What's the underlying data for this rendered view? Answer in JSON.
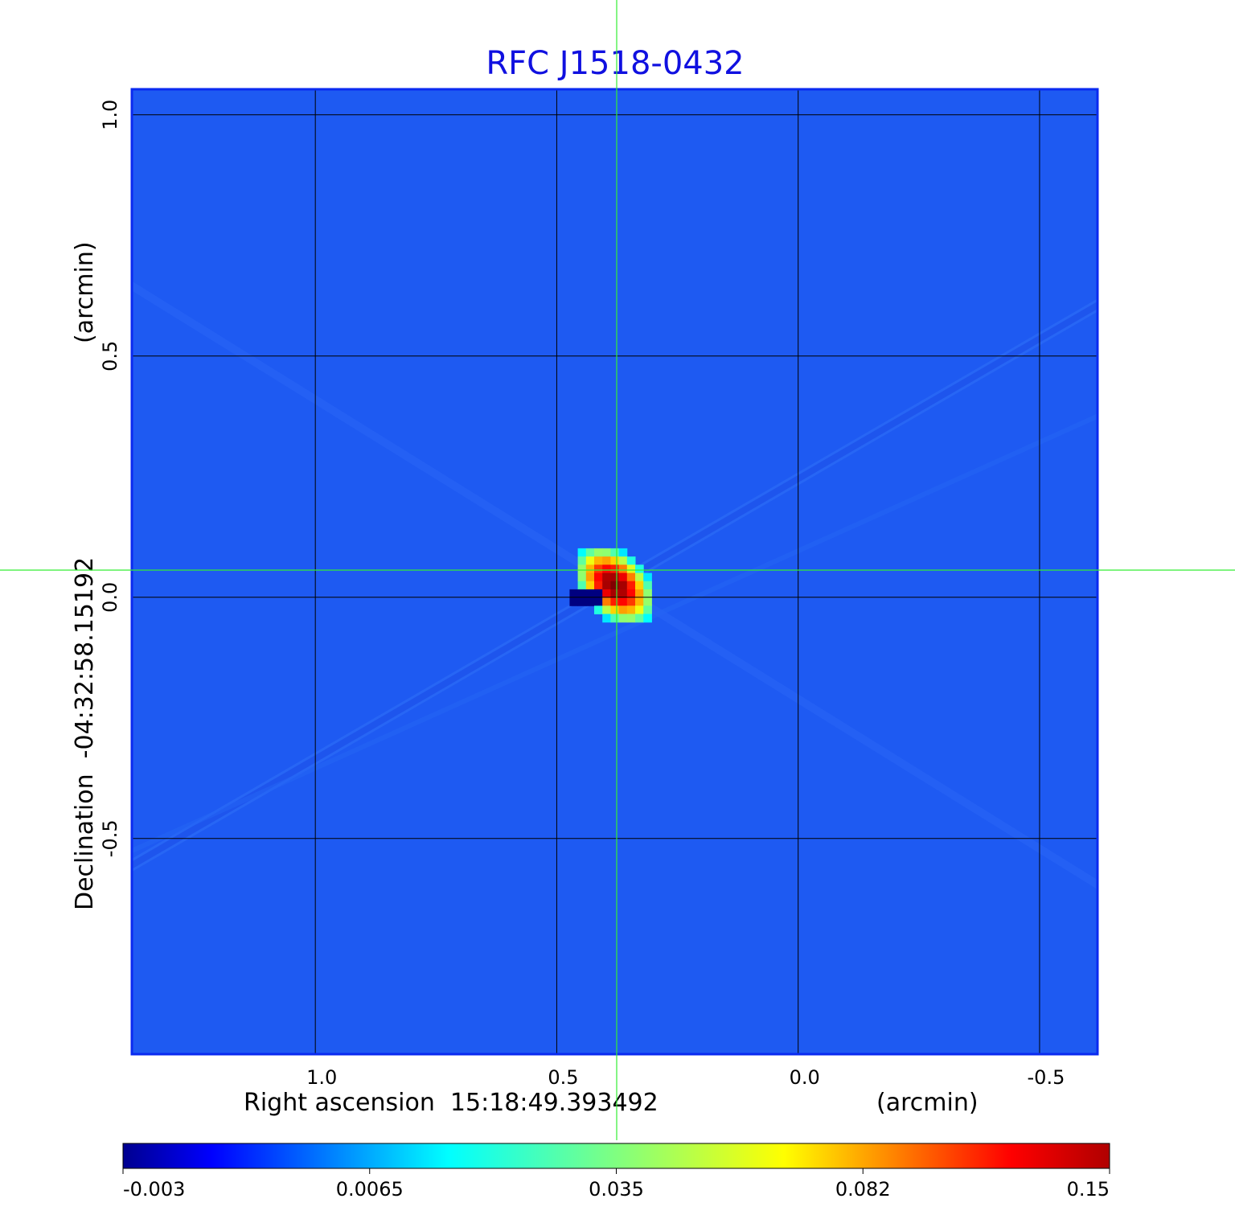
{
  "chart_data": {
    "type": "heatmap",
    "title": "RFC J1518-0432",
    "xlabel": "Right ascension  15:18:49.393492",
    "xunit": "(arcmin)",
    "ylabel": "Declination  -04:32:58.15192",
    "yunit": "(arcmin)",
    "xlim": [
      1.38,
      -0.62
    ],
    "ylim": [
      -0.947,
      1.053
    ],
    "xticks": [
      1.0,
      0.5,
      0.0,
      -0.5
    ],
    "xtick_labels": [
      "1.0",
      "0.5",
      "0.0",
      "-0.5"
    ],
    "yticks": [
      1.0,
      0.5,
      0.0,
      -0.5
    ],
    "ytick_labels": [
      "1.0",
      "0.5",
      "0.0",
      "-0.5"
    ],
    "grid": true,
    "crosshair": {
      "x": 0.375,
      "y": 0.03
    },
    "source": {
      "x": 0.38,
      "y": 0.025,
      "peak": 0.15
    },
    "background_level": 0.0,
    "colormap": "jet",
    "colorbar": {
      "placement": "bottom",
      "range": [
        -0.003,
        0.15
      ],
      "tick_labels": [
        "-0.003",
        "0.0065",
        "0.035",
        "0.082",
        "0.15"
      ]
    },
    "colors": {
      "title": "#1010e0",
      "frame": "#0a2af0",
      "crosshair": "#33ee33",
      "grid": "#000000"
    }
  }
}
